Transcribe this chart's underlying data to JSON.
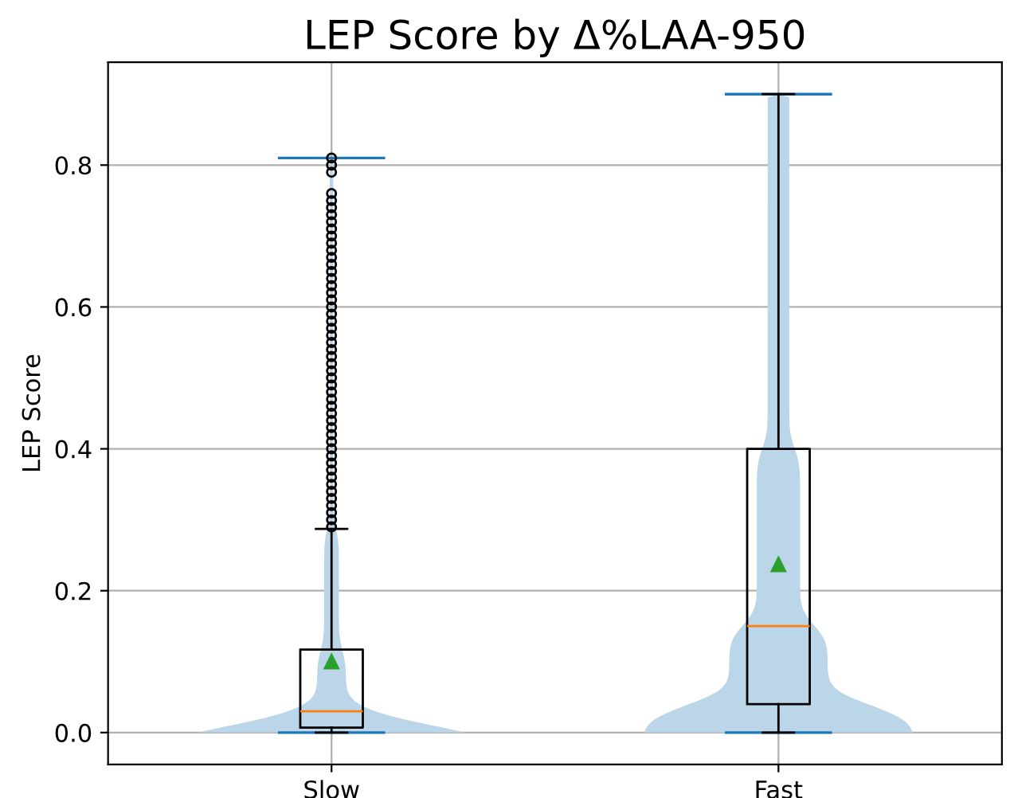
{
  "chart_data": {
    "type": "box",
    "title": "LEP Score by Δ%LAA-950",
    "ylabel": "LEP Score",
    "categories": [
      "Slow",
      "Fast"
    ],
    "ylim": [
      -0.045,
      0.945
    ],
    "yticks": [
      {
        "value": 0,
        "label": "0.0"
      },
      {
        "value": 0.2,
        "label": "0.2"
      },
      {
        "value": 0.4,
        "label": "0.4"
      },
      {
        "value": 0.6,
        "label": "0.6"
      },
      {
        "value": 0.8,
        "label": "0.8"
      }
    ],
    "grid": true,
    "boxes": [
      {
        "low": 0,
        "q1": 0.007,
        "median": 0.03,
        "q3": 0.117,
        "high": 0.287,
        "mean": 0.1,
        "outliers": [
          0.29,
          0.3,
          0.31,
          0.32,
          0.33,
          0.34,
          0.35,
          0.36,
          0.37,
          0.38,
          0.39,
          0.4,
          0.41,
          0.42,
          0.43,
          0.44,
          0.45,
          0.46,
          0.47,
          0.48,
          0.49,
          0.5,
          0.51,
          0.52,
          0.53,
          0.54,
          0.55,
          0.56,
          0.57,
          0.58,
          0.59,
          0.6,
          0.61,
          0.62,
          0.63,
          0.64,
          0.65,
          0.66,
          0.67,
          0.68,
          0.69,
          0.7,
          0.71,
          0.72,
          0.73,
          0.74,
          0.75,
          0.76,
          0.79,
          0.8,
          0.81
        ]
      },
      {
        "low": 0,
        "q1": 0.04,
        "median": 0.15,
        "q3": 0.4,
        "high": 0.9,
        "mean": 0.237
      }
    ]
  }
}
